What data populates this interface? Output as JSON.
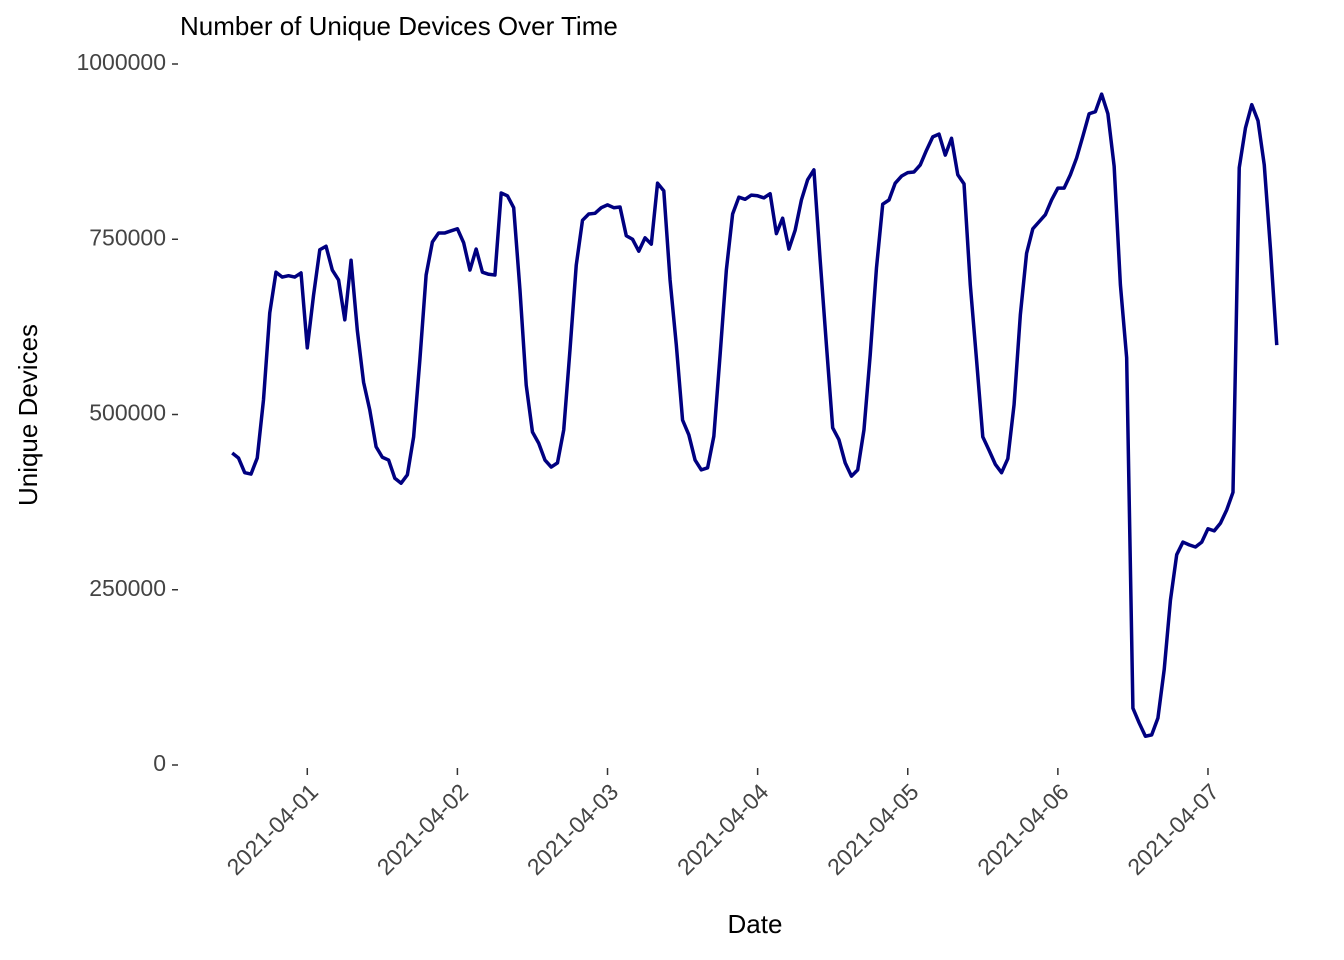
{
  "chart_data": {
    "type": "line",
    "title": "Number of Unique Devices Over Time",
    "x_label": "Date",
    "y_label": "Unique Devices",
    "color": "#000080",
    "x": [
      "2021-03-31 12:00",
      "2021-03-31 13:00",
      "2021-03-31 14:00",
      "2021-03-31 15:00",
      "2021-03-31 16:00",
      "2021-03-31 17:00",
      "2021-03-31 18:00",
      "2021-03-31 19:00",
      "2021-03-31 20:00",
      "2021-03-31 21:00",
      "2021-03-31 22:00",
      "2021-03-31 23:00",
      "2021-04-01 00:00",
      "2021-04-01 01:00",
      "2021-04-01 02:00",
      "2021-04-01 03:00",
      "2021-04-01 04:00",
      "2021-04-01 05:00",
      "2021-04-01 06:00",
      "2021-04-01 07:00",
      "2021-04-01 08:00",
      "2021-04-01 09:00",
      "2021-04-01 10:00",
      "2021-04-01 11:00",
      "2021-04-01 12:00",
      "2021-04-01 13:00",
      "2021-04-01 14:00",
      "2021-04-01 15:00",
      "2021-04-01 16:00",
      "2021-04-01 17:00",
      "2021-04-01 18:00",
      "2021-04-01 19:00",
      "2021-04-01 20:00",
      "2021-04-01 21:00",
      "2021-04-01 22:00",
      "2021-04-01 23:00",
      "2021-04-02 00:00",
      "2021-04-02 01:00",
      "2021-04-02 02:00",
      "2021-04-02 03:00",
      "2021-04-02 04:00",
      "2021-04-02 05:00",
      "2021-04-02 06:00",
      "2021-04-02 07:00",
      "2021-04-02 08:00",
      "2021-04-02 09:00",
      "2021-04-02 10:00",
      "2021-04-02 11:00",
      "2021-04-02 12:00",
      "2021-04-02 13:00",
      "2021-04-02 14:00",
      "2021-04-02 15:00",
      "2021-04-02 16:00",
      "2021-04-02 17:00",
      "2021-04-02 18:00",
      "2021-04-02 19:00",
      "2021-04-02 20:00",
      "2021-04-02 21:00",
      "2021-04-02 22:00",
      "2021-04-02 23:00",
      "2021-04-03 00:00",
      "2021-04-03 01:00",
      "2021-04-03 02:00",
      "2021-04-03 03:00",
      "2021-04-03 04:00",
      "2021-04-03 05:00",
      "2021-04-03 06:00",
      "2021-04-03 07:00",
      "2021-04-03 08:00",
      "2021-04-03 09:00",
      "2021-04-03 10:00",
      "2021-04-03 11:00",
      "2021-04-03 12:00",
      "2021-04-03 13:00",
      "2021-04-03 14:00",
      "2021-04-03 15:00",
      "2021-04-03 16:00",
      "2021-04-03 17:00",
      "2021-04-03 18:00",
      "2021-04-03 19:00",
      "2021-04-03 20:00",
      "2021-04-03 21:00",
      "2021-04-03 22:00",
      "2021-04-03 23:00",
      "2021-04-04 00:00",
      "2021-04-04 01:00",
      "2021-04-04 02:00",
      "2021-04-04 03:00",
      "2021-04-04 04:00",
      "2021-04-04 05:00",
      "2021-04-04 06:00",
      "2021-04-04 07:00",
      "2021-04-04 08:00",
      "2021-04-04 09:00",
      "2021-04-04 10:00",
      "2021-04-04 11:00",
      "2021-04-04 12:00",
      "2021-04-04 13:00",
      "2021-04-04 14:00",
      "2021-04-04 15:00",
      "2021-04-04 16:00",
      "2021-04-04 17:00",
      "2021-04-04 18:00",
      "2021-04-04 19:00",
      "2021-04-04 20:00",
      "2021-04-04 21:00",
      "2021-04-04 22:00",
      "2021-04-04 23:00",
      "2021-04-05 00:00",
      "2021-04-05 01:00",
      "2021-04-05 02:00",
      "2021-04-05 03:00",
      "2021-04-05 04:00",
      "2021-04-05 05:00",
      "2021-04-05 06:00",
      "2021-04-05 07:00",
      "2021-04-05 08:00",
      "2021-04-05 09:00",
      "2021-04-05 10:00",
      "2021-04-05 11:00",
      "2021-04-05 12:00",
      "2021-04-05 13:00",
      "2021-04-05 14:00",
      "2021-04-05 15:00",
      "2021-04-05 16:00",
      "2021-04-05 17:00",
      "2021-04-05 18:00",
      "2021-04-05 19:00",
      "2021-04-05 20:00",
      "2021-04-05 21:00",
      "2021-04-05 22:00",
      "2021-04-05 23:00",
      "2021-04-06 00:00",
      "2021-04-06 01:00",
      "2021-04-06 02:00",
      "2021-04-06 03:00",
      "2021-04-06 04:00",
      "2021-04-06 05:00",
      "2021-04-06 06:00",
      "2021-04-06 07:00",
      "2021-04-06 08:00",
      "2021-04-06 09:00",
      "2021-04-06 10:00",
      "2021-04-06 11:00",
      "2021-04-06 12:00",
      "2021-04-06 13:00",
      "2021-04-06 14:00",
      "2021-04-06 15:00",
      "2021-04-06 16:00",
      "2021-04-06 17:00",
      "2021-04-06 18:00",
      "2021-04-06 19:00",
      "2021-04-06 20:00",
      "2021-04-06 21:00",
      "2021-04-06 22:00",
      "2021-04-06 23:00",
      "2021-04-07 00:00",
      "2021-04-07 01:00",
      "2021-04-07 02:00",
      "2021-04-07 03:00",
      "2021-04-07 04:00",
      "2021-04-07 05:00",
      "2021-04-07 06:00",
      "2021-04-07 07:00",
      "2021-04-07 08:00",
      "2021-04-07 09:00",
      "2021-04-07 10:00",
      "2021-04-07 11:00"
    ],
    "values": [
      445000,
      438000,
      417000,
      415000,
      438000,
      521000,
      645000,
      703000,
      696000,
      698000,
      696000,
      702000,
      595000,
      670000,
      735000,
      740000,
      706000,
      692000,
      635000,
      720000,
      620000,
      546000,
      506000,
      454000,
      439000,
      435000,
      409000,
      402000,
      414000,
      468000,
      578000,
      699000,
      746000,
      759000,
      759000,
      762000,
      765000,
      745000,
      706000,
      736000,
      703000,
      700000,
      699000,
      816000,
      812000,
      795000,
      678000,
      542000,
      475000,
      459000,
      435000,
      425000,
      431000,
      478000,
      592000,
      713000,
      777000,
      786000,
      787000,
      795000,
      799000,
      795000,
      796000,
      755000,
      750000,
      733000,
      752000,
      743000,
      830000,
      819000,
      692000,
      599000,
      492000,
      471000,
      435000,
      421000,
      424000,
      469000,
      585000,
      706000,
      786000,
      810000,
      807000,
      813000,
      812000,
      809000,
      815000,
      758000,
      780000,
      736000,
      763000,
      806000,
      835000,
      849000,
      720000,
      599000,
      481000,
      464000,
      431000,
      412000,
      421000,
      478000,
      585000,
      709000,
      800000,
      806000,
      830000,
      840000,
      845000,
      846000,
      856000,
      877000,
      896000,
      900000,
      870000,
      894000,
      842000,
      829000,
      685000,
      578000,
      468000,
      449000,
      429000,
      417000,
      437000,
      514000,
      642000,
      730000,
      765000,
      775000,
      785000,
      806000,
      823000,
      823000,
      842000,
      866000,
      897000,
      929000,
      932000,
      957000,
      929000,
      854000,
      685000,
      581000,
      81000,
      60000,
      41000,
      43000,
      67000,
      136000,
      235000,
      300000,
      318000,
      314000,
      311000,
      318000,
      337000,
      334000,
      345000,
      364000,
      389000,
      852000,
      909000,
      942000,
      919000,
      856000,
      735000,
      599000
    ],
    "xlim": [
      "2021-03-31 03:39",
      "2021-04-07 19:21"
    ],
    "xticks": [
      "2021-04-01",
      "2021-04-02",
      "2021-04-03",
      "2021-04-04",
      "2021-04-05",
      "2021-04-06",
      "2021-04-07"
    ],
    "ylim": [
      0,
      1000000
    ],
    "yticks": [
      0,
      250000,
      500000,
      750000,
      1000000
    ],
    "grid": false
  }
}
